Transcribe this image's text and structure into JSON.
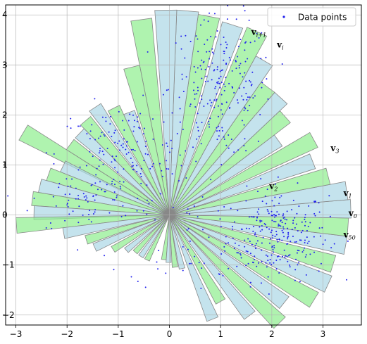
{
  "chart_data": {
    "type": "scatter",
    "xlim": [
      -3.2,
      3.75
    ],
    "ylim": [
      -2.2,
      4.2
    ],
    "xticks": [
      -3,
      -2,
      -1,
      0,
      1,
      2,
      3
    ],
    "yticks": [
      -2,
      -1,
      0,
      1,
      2,
      3,
      4
    ],
    "grid": true,
    "legend": {
      "position": "top-right",
      "entries": [
        {
          "label": "Data points",
          "color": "#2222ee"
        }
      ]
    },
    "colors": {
      "green": "#90ee90",
      "blue": "#add8e6",
      "edge": "#888888",
      "points": "#2222ee"
    },
    "sectors": [
      {
        "angle": -97,
        "radius": 0.9,
        "color": "green"
      },
      {
        "angle": -91,
        "radius": 0.95,
        "color": "blue"
      },
      {
        "angle": -84,
        "radius": 1.05,
        "color": "green"
      },
      {
        "angle": -77,
        "radius": 1.1,
        "color": "blue"
      },
      {
        "angle": -68,
        "radius": 2.25,
        "color": "blue"
      },
      {
        "angle": -60,
        "radius": 2.0,
        "color": "green"
      },
      {
        "angle": -52,
        "radius": 2.55,
        "color": "blue"
      },
      {
        "angle": -45,
        "radius": 3.05,
        "color": "green"
      },
      {
        "angle": -38,
        "radius": 2.85,
        "color": "blue"
      },
      {
        "angle": -31,
        "radius": 3.3,
        "color": "green"
      },
      {
        "angle": -24,
        "radius": 3.4,
        "color": "blue"
      },
      {
        "angle": -17,
        "radius": 3.35,
        "color": "green"
      },
      {
        "angle": -10,
        "radius": 3.5,
        "color": "blue"
      },
      {
        "angle": -4,
        "radius": 3.5,
        "color": "green"
      },
      {
        "angle": 2,
        "radius": 3.55,
        "color": "blue"
      },
      {
        "angle": 8,
        "radius": 3.5,
        "color": "blue"
      },
      {
        "angle": 14,
        "radius": 3.2,
        "color": "green"
      },
      {
        "angle": 21,
        "radius": 3.0,
        "color": "blue"
      },
      {
        "angle": 28,
        "radius": 3.2,
        "color": "green"
      },
      {
        "angle": 35,
        "radius": 2.6,
        "color": "blue"
      },
      {
        "angle": 41,
        "radius": 3.0,
        "color": "green"
      },
      {
        "angle": 47,
        "radius": 3.2,
        "color": "blue"
      },
      {
        "angle": 53,
        "radius": 3.2,
        "color": "green"
      },
      {
        "angle": 59,
        "radius": 3.6,
        "color": "blue"
      },
      {
        "angle": 65,
        "radius": 4.05,
        "color": "green"
      },
      {
        "angle": 72,
        "radius": 4.0,
        "color": "blue"
      },
      {
        "angle": 79,
        "radius": 4.05,
        "color": "green"
      },
      {
        "angle": 85,
        "radius": 4.1,
        "color": "blue"
      },
      {
        "angle": 91,
        "radius": 4.1,
        "color": "blue"
      },
      {
        "angle": 98,
        "radius": 3.95,
        "color": "green"
      },
      {
        "angle": 104,
        "radius": 3.05,
        "color": "green"
      },
      {
        "angle": 111,
        "radius": 2.2,
        "color": "blue"
      },
      {
        "angle": 117,
        "radius": 2.4,
        "color": "green"
      },
      {
        "angle": 124,
        "radius": 2.6,
        "color": "blue"
      },
      {
        "angle": 131,
        "radius": 2.5,
        "color": "green"
      },
      {
        "angle": 137,
        "radius": 2.4,
        "color": "blue"
      },
      {
        "angle": 144,
        "radius": 2.4,
        "color": "green"
      },
      {
        "angle": 150,
        "radius": 3.3,
        "color": "green"
      },
      {
        "angle": 155,
        "radius": 2.3,
        "color": "blue"
      },
      {
        "angle": 161,
        "radius": 2.5,
        "color": "green"
      },
      {
        "angle": 167,
        "radius": 2.6,
        "color": "blue"
      },
      {
        "angle": 173,
        "radius": 2.7,
        "color": "green"
      },
      {
        "angle": 179,
        "radius": 2.65,
        "color": "blue"
      },
      {
        "angle": 184,
        "radius": 3.0,
        "color": "green"
      },
      {
        "angle": 190,
        "radius": 2.1,
        "color": "blue"
      },
      {
        "angle": 197,
        "radius": 1.7,
        "color": "green"
      },
      {
        "angle": 204,
        "radius": 1.6,
        "color": "blue"
      },
      {
        "angle": 212,
        "radius": 1.3,
        "color": "green"
      },
      {
        "angle": 220,
        "radius": 1.1,
        "color": "blue"
      },
      {
        "angle": 228,
        "radius": 1.0,
        "color": "green"
      },
      {
        "angle": 236,
        "radius": 1.0,
        "color": "blue"
      },
      {
        "angle": 244,
        "radius": 1.0,
        "color": "green"
      }
    ],
    "annotations": [
      {
        "base": "v",
        "sub": "i+1",
        "x": 1.6,
        "y": 3.6
      },
      {
        "base": "v",
        "sub": "i",
        "x": 2.1,
        "y": 3.35
      },
      {
        "base": "v",
        "sub": "3",
        "x": 3.15,
        "y": 1.28
      },
      {
        "base": "v",
        "sub": "2",
        "x": 1.95,
        "y": 0.52
      },
      {
        "base": "v",
        "sub": "1",
        "x": 3.4,
        "y": 0.38
      },
      {
        "base": "v",
        "sub": "0",
        "x": 3.5,
        "y": -0.02
      },
      {
        "base": "v",
        "sub": "50",
        "x": 3.4,
        "y": -0.45
      }
    ],
    "point_clusters": [
      {
        "cx": 2.1,
        "cy": -0.4,
        "sx": 0.5,
        "sy": 0.45,
        "n": 260
      },
      {
        "cx": 1.0,
        "cy": 2.55,
        "sx": 0.5,
        "sy": 0.7,
        "n": 230
      },
      {
        "cx": -0.9,
        "cy": 1.2,
        "sx": 0.65,
        "sy": 0.5,
        "n": 150
      },
      {
        "cx": -1.7,
        "cy": 0.3,
        "sx": 0.5,
        "sy": 0.35,
        "n": 60
      },
      {
        "cx": 0.4,
        "cy": -0.5,
        "sx": 0.6,
        "sy": 0.5,
        "n": 40
      }
    ]
  }
}
